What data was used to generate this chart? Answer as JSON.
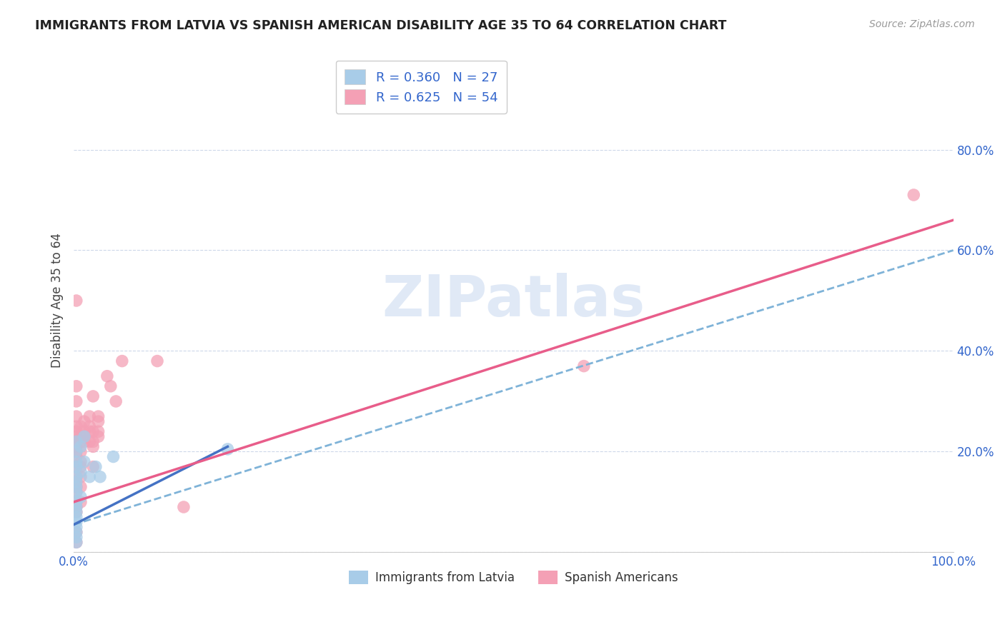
{
  "title": "IMMIGRANTS FROM LATVIA VS SPANISH AMERICAN DISABILITY AGE 35 TO 64 CORRELATION CHART",
  "source": "Source: ZipAtlas.com",
  "ylabel": "Disability Age 35 to 64",
  "xlim": [
    0,
    1.0
  ],
  "ylim": [
    0,
    1.0
  ],
  "xticks": [
    0.0,
    0.1,
    0.2,
    0.3,
    0.4,
    0.5,
    0.6,
    0.7,
    0.8,
    0.9,
    1.0
  ],
  "yticks": [
    0.0,
    0.2,
    0.4,
    0.6,
    0.8
  ],
  "xtick_labels": [
    "0.0%",
    "",
    "",
    "",
    "",
    "",
    "",
    "",
    "",
    "",
    "100.0%"
  ],
  "ytick_labels": [
    "",
    "20.0%",
    "40.0%",
    "60.0%",
    "80.0%"
  ],
  "legend1_label": "R = 0.360   N = 27",
  "legend2_label": "R = 0.625   N = 54",
  "legend_bottom1": "Immigrants from Latvia",
  "legend_bottom2": "Spanish Americans",
  "blue_color": "#a8cce8",
  "pink_color": "#f4a0b5",
  "blue_line_color": "#4472c4",
  "pink_line_color": "#e85d8a",
  "dashed_line_color": "#7fb3d8",
  "watermark_color": "#c8d8f0",
  "background_color": "#ffffff",
  "blue_scatter": [
    [
      0.003,
      0.22
    ],
    [
      0.003,
      0.2
    ],
    [
      0.003,
      0.18
    ],
    [
      0.003,
      0.17
    ],
    [
      0.003,
      0.15
    ],
    [
      0.003,
      0.14
    ],
    [
      0.003,
      0.13
    ],
    [
      0.003,
      0.12
    ],
    [
      0.003,
      0.1
    ],
    [
      0.003,
      0.09
    ],
    [
      0.003,
      0.08
    ],
    [
      0.003,
      0.07
    ],
    [
      0.003,
      0.06
    ],
    [
      0.003,
      0.05
    ],
    [
      0.003,
      0.04
    ],
    [
      0.003,
      0.03
    ],
    [
      0.003,
      0.02
    ],
    [
      0.008,
      0.21
    ],
    [
      0.008,
      0.16
    ],
    [
      0.008,
      0.11
    ],
    [
      0.012,
      0.23
    ],
    [
      0.012,
      0.18
    ],
    [
      0.018,
      0.15
    ],
    [
      0.025,
      0.17
    ],
    [
      0.03,
      0.15
    ],
    [
      0.045,
      0.19
    ],
    [
      0.175,
      0.205
    ]
  ],
  "pink_scatter": [
    [
      0.003,
      0.5
    ],
    [
      0.003,
      0.33
    ],
    [
      0.003,
      0.3
    ],
    [
      0.003,
      0.27
    ],
    [
      0.003,
      0.25
    ],
    [
      0.003,
      0.24
    ],
    [
      0.003,
      0.23
    ],
    [
      0.003,
      0.22
    ],
    [
      0.003,
      0.21
    ],
    [
      0.003,
      0.2
    ],
    [
      0.003,
      0.19
    ],
    [
      0.003,
      0.17
    ],
    [
      0.003,
      0.15
    ],
    [
      0.003,
      0.13
    ],
    [
      0.003,
      0.12
    ],
    [
      0.003,
      0.1
    ],
    [
      0.003,
      0.09
    ],
    [
      0.003,
      0.08
    ],
    [
      0.003,
      0.04
    ],
    [
      0.003,
      0.02
    ],
    [
      0.008,
      0.25
    ],
    [
      0.008,
      0.23
    ],
    [
      0.008,
      0.22
    ],
    [
      0.008,
      0.2
    ],
    [
      0.008,
      0.18
    ],
    [
      0.008,
      0.17
    ],
    [
      0.008,
      0.15
    ],
    [
      0.008,
      0.13
    ],
    [
      0.008,
      0.1
    ],
    [
      0.012,
      0.26
    ],
    [
      0.012,
      0.24
    ],
    [
      0.012,
      0.23
    ],
    [
      0.012,
      0.22
    ],
    [
      0.018,
      0.27
    ],
    [
      0.018,
      0.25
    ],
    [
      0.018,
      0.24
    ],
    [
      0.018,
      0.22
    ],
    [
      0.022,
      0.31
    ],
    [
      0.022,
      0.24
    ],
    [
      0.022,
      0.22
    ],
    [
      0.022,
      0.21
    ],
    [
      0.022,
      0.17
    ],
    [
      0.028,
      0.27
    ],
    [
      0.028,
      0.26
    ],
    [
      0.028,
      0.24
    ],
    [
      0.028,
      0.23
    ],
    [
      0.038,
      0.35
    ],
    [
      0.042,
      0.33
    ],
    [
      0.048,
      0.3
    ],
    [
      0.055,
      0.38
    ],
    [
      0.095,
      0.38
    ],
    [
      0.125,
      0.09
    ],
    [
      0.58,
      0.37
    ],
    [
      0.955,
      0.71
    ]
  ],
  "blue_line": [
    [
      0.0,
      0.055
    ],
    [
      0.175,
      0.21
    ]
  ],
  "pink_line": [
    [
      0.0,
      0.1
    ],
    [
      1.0,
      0.66
    ]
  ],
  "dashed_line": [
    [
      0.0,
      0.055
    ],
    [
      1.0,
      0.6
    ]
  ]
}
